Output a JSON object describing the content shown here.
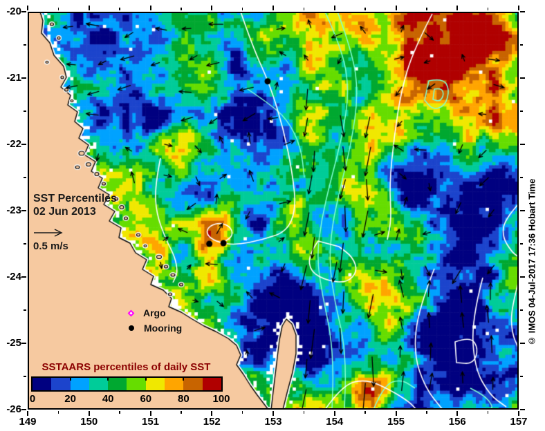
{
  "figure": {
    "annotation": {
      "title_line1": "SST Percentiles",
      "title_line2": "02 Jun 2013",
      "velocity_scale_label": "0.5 m/s"
    },
    "legend": {
      "argo_label": "Argo",
      "mooring_label": "Mooring"
    },
    "colorbar": {
      "title": "SSTAARS percentiles of daily SST",
      "tick_labels": [
        "0",
        "20",
        "40",
        "60",
        "80",
        "100"
      ],
      "segment_colors": [
        "#000080",
        "#1C44CC",
        "#00A2FF",
        "#00CC99",
        "#00A830",
        "#66DD00",
        "#F0E800",
        "#FFA500",
        "#C86400",
        "#B00000"
      ]
    },
    "x_axis": {
      "tick_values": [
        149,
        150,
        151,
        152,
        153,
        154,
        155,
        156,
        157
      ]
    },
    "y_axis": {
      "tick_values": [
        -20,
        -21,
        -22,
        -23,
        -24,
        -25,
        -26
      ]
    },
    "watermark": "© IMOS 04-Jul-2017 17:36 Hobart Time",
    "map_markers": {
      "moorings_lonlat": [
        [
          152.91,
          -21.05
        ],
        [
          151.96,
          -23.5
        ],
        [
          152.19,
          -23.49
        ]
      ]
    },
    "colors": {
      "land": "#F6C9A0",
      "coastline": "#000000",
      "cloud": "#FFFFFF",
      "contour_primary": "#FFFFFF",
      "contour_secondary": "#7FFFD4",
      "arrow": "#000000",
      "argo_marker": "#FF00FF",
      "mooring_marker": "#000000",
      "colorbar_title_color": "#8B0000"
    }
  }
}
